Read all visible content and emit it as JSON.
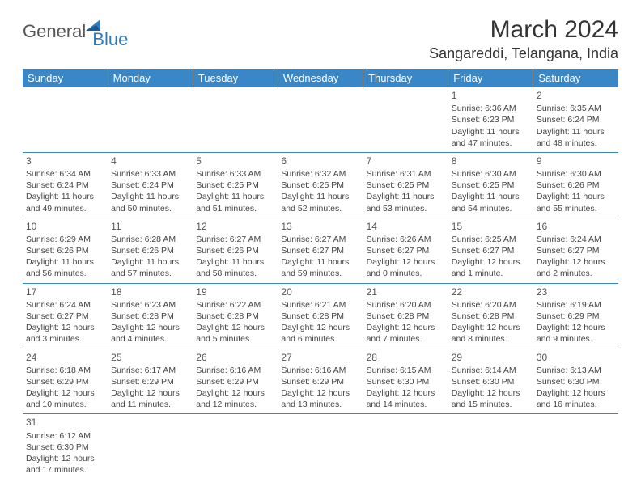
{
  "logo": {
    "general": "General",
    "blue": "Blue"
  },
  "title": "March 2024",
  "location": "Sangareddi, Telangana, India",
  "colors": {
    "header_bg": "#3a87c8",
    "header_text": "#ffffff",
    "grid_border": "#3a87c8",
    "text": "#444444",
    "logo_gray": "#555555",
    "logo_blue": "#2d7bc0"
  },
  "weekdays": [
    "Sunday",
    "Monday",
    "Tuesday",
    "Wednesday",
    "Thursday",
    "Friday",
    "Saturday"
  ],
  "weeks": [
    [
      null,
      null,
      null,
      null,
      null,
      {
        "day": "1",
        "sunrise": "Sunrise: 6:36 AM",
        "sunset": "Sunset: 6:23 PM",
        "daylight": "Daylight: 11 hours and 47 minutes."
      },
      {
        "day": "2",
        "sunrise": "Sunrise: 6:35 AM",
        "sunset": "Sunset: 6:24 PM",
        "daylight": "Daylight: 11 hours and 48 minutes."
      }
    ],
    [
      {
        "day": "3",
        "sunrise": "Sunrise: 6:34 AM",
        "sunset": "Sunset: 6:24 PM",
        "daylight": "Daylight: 11 hours and 49 minutes."
      },
      {
        "day": "4",
        "sunrise": "Sunrise: 6:33 AM",
        "sunset": "Sunset: 6:24 PM",
        "daylight": "Daylight: 11 hours and 50 minutes."
      },
      {
        "day": "5",
        "sunrise": "Sunrise: 6:33 AM",
        "sunset": "Sunset: 6:25 PM",
        "daylight": "Daylight: 11 hours and 51 minutes."
      },
      {
        "day": "6",
        "sunrise": "Sunrise: 6:32 AM",
        "sunset": "Sunset: 6:25 PM",
        "daylight": "Daylight: 11 hours and 52 minutes."
      },
      {
        "day": "7",
        "sunrise": "Sunrise: 6:31 AM",
        "sunset": "Sunset: 6:25 PM",
        "daylight": "Daylight: 11 hours and 53 minutes."
      },
      {
        "day": "8",
        "sunrise": "Sunrise: 6:30 AM",
        "sunset": "Sunset: 6:25 PM",
        "daylight": "Daylight: 11 hours and 54 minutes."
      },
      {
        "day": "9",
        "sunrise": "Sunrise: 6:30 AM",
        "sunset": "Sunset: 6:26 PM",
        "daylight": "Daylight: 11 hours and 55 minutes."
      }
    ],
    [
      {
        "day": "10",
        "sunrise": "Sunrise: 6:29 AM",
        "sunset": "Sunset: 6:26 PM",
        "daylight": "Daylight: 11 hours and 56 minutes."
      },
      {
        "day": "11",
        "sunrise": "Sunrise: 6:28 AM",
        "sunset": "Sunset: 6:26 PM",
        "daylight": "Daylight: 11 hours and 57 minutes."
      },
      {
        "day": "12",
        "sunrise": "Sunrise: 6:27 AM",
        "sunset": "Sunset: 6:26 PM",
        "daylight": "Daylight: 11 hours and 58 minutes."
      },
      {
        "day": "13",
        "sunrise": "Sunrise: 6:27 AM",
        "sunset": "Sunset: 6:27 PM",
        "daylight": "Daylight: 11 hours and 59 minutes."
      },
      {
        "day": "14",
        "sunrise": "Sunrise: 6:26 AM",
        "sunset": "Sunset: 6:27 PM",
        "daylight": "Daylight: 12 hours and 0 minutes."
      },
      {
        "day": "15",
        "sunrise": "Sunrise: 6:25 AM",
        "sunset": "Sunset: 6:27 PM",
        "daylight": "Daylight: 12 hours and 1 minute."
      },
      {
        "day": "16",
        "sunrise": "Sunrise: 6:24 AM",
        "sunset": "Sunset: 6:27 PM",
        "daylight": "Daylight: 12 hours and 2 minutes."
      }
    ],
    [
      {
        "day": "17",
        "sunrise": "Sunrise: 6:24 AM",
        "sunset": "Sunset: 6:27 PM",
        "daylight": "Daylight: 12 hours and 3 minutes."
      },
      {
        "day": "18",
        "sunrise": "Sunrise: 6:23 AM",
        "sunset": "Sunset: 6:28 PM",
        "daylight": "Daylight: 12 hours and 4 minutes."
      },
      {
        "day": "19",
        "sunrise": "Sunrise: 6:22 AM",
        "sunset": "Sunset: 6:28 PM",
        "daylight": "Daylight: 12 hours and 5 minutes."
      },
      {
        "day": "20",
        "sunrise": "Sunrise: 6:21 AM",
        "sunset": "Sunset: 6:28 PM",
        "daylight": "Daylight: 12 hours and 6 minutes."
      },
      {
        "day": "21",
        "sunrise": "Sunrise: 6:20 AM",
        "sunset": "Sunset: 6:28 PM",
        "daylight": "Daylight: 12 hours and 7 minutes."
      },
      {
        "day": "22",
        "sunrise": "Sunrise: 6:20 AM",
        "sunset": "Sunset: 6:28 PM",
        "daylight": "Daylight: 12 hours and 8 minutes."
      },
      {
        "day": "23",
        "sunrise": "Sunrise: 6:19 AM",
        "sunset": "Sunset: 6:29 PM",
        "daylight": "Daylight: 12 hours and 9 minutes."
      }
    ],
    [
      {
        "day": "24",
        "sunrise": "Sunrise: 6:18 AM",
        "sunset": "Sunset: 6:29 PM",
        "daylight": "Daylight: 12 hours and 10 minutes."
      },
      {
        "day": "25",
        "sunrise": "Sunrise: 6:17 AM",
        "sunset": "Sunset: 6:29 PM",
        "daylight": "Daylight: 12 hours and 11 minutes."
      },
      {
        "day": "26",
        "sunrise": "Sunrise: 6:16 AM",
        "sunset": "Sunset: 6:29 PM",
        "daylight": "Daylight: 12 hours and 12 minutes."
      },
      {
        "day": "27",
        "sunrise": "Sunrise: 6:16 AM",
        "sunset": "Sunset: 6:29 PM",
        "daylight": "Daylight: 12 hours and 13 minutes."
      },
      {
        "day": "28",
        "sunrise": "Sunrise: 6:15 AM",
        "sunset": "Sunset: 6:30 PM",
        "daylight": "Daylight: 12 hours and 14 minutes."
      },
      {
        "day": "29",
        "sunrise": "Sunrise: 6:14 AM",
        "sunset": "Sunset: 6:30 PM",
        "daylight": "Daylight: 12 hours and 15 minutes."
      },
      {
        "day": "30",
        "sunrise": "Sunrise: 6:13 AM",
        "sunset": "Sunset: 6:30 PM",
        "daylight": "Daylight: 12 hours and 16 minutes."
      }
    ],
    [
      {
        "day": "31",
        "sunrise": "Sunrise: 6:12 AM",
        "sunset": "Sunset: 6:30 PM",
        "daylight": "Daylight: 12 hours and 17 minutes."
      },
      null,
      null,
      null,
      null,
      null,
      null
    ]
  ]
}
